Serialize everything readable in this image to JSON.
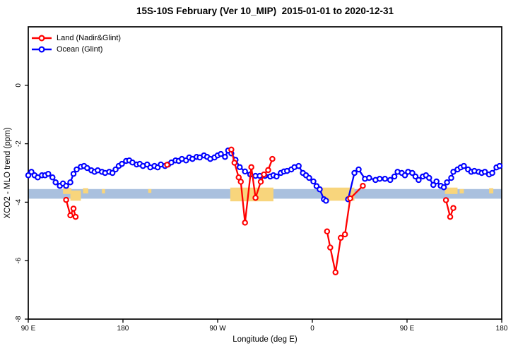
{
  "title": "15S-10S February (Ver 10_MIP)  2015-01-01 to 2020-12-31",
  "axes": {
    "ylabel": "XCO2 - MLO trend (ppm)",
    "xlabel": "Longitude (deg E)"
  },
  "legend": [
    {
      "label": "Land (Nadir&Glint)",
      "color": "#ff0000"
    },
    {
      "label": "Ocean (Glint)",
      "color": "#0000ff"
    }
  ],
  "chart_data": {
    "type": "line",
    "title": "15S-10S February (Ver 10_MIP)  2015-01-01 to 2020-12-31",
    "xlabel": "Longitude (deg E)",
    "ylabel": "XCO2 - MLO trend (ppm)",
    "legend_position": "top-left",
    "grid": false,
    "x_axis": {
      "range": [
        0,
        450
      ],
      "note": "axis position in degrees along wrapped longitude axis",
      "ticks": [
        {
          "pos": 0,
          "label": "90 E"
        },
        {
          "pos": 90,
          "label": "180"
        },
        {
          "pos": 180,
          "label": "90 W"
        },
        {
          "pos": 270,
          "label": "0"
        },
        {
          "pos": 360,
          "label": "90 E"
        },
        {
          "pos": 450,
          "label": "180"
        }
      ]
    },
    "y_axis": {
      "range": [
        -8,
        2
      ],
      "ticks": [
        {
          "value": 0,
          "label": "0"
        },
        {
          "value": -2,
          "label": "-2"
        },
        {
          "value": -4,
          "label": "-4"
        },
        {
          "value": -6,
          "label": "-6"
        },
        {
          "value": -8,
          "label": "-8"
        }
      ]
    },
    "band": {
      "top": -3.55,
      "bottom": -3.88,
      "color": "#a9c0de"
    },
    "highlight_color": "#f8d57c",
    "highlight_patches": [
      [
        33,
        41,
        -3.52,
        -3.72
      ],
      [
        40,
        50,
        -3.6,
        -3.95
      ],
      [
        52,
        57,
        -3.52,
        -3.7
      ],
      [
        70,
        73,
        -3.55,
        -3.7
      ],
      [
        114,
        117,
        -3.55,
        -3.68
      ],
      [
        192,
        233,
        -3.5,
        -3.97
      ],
      [
        279,
        310,
        -3.5,
        -3.95
      ],
      [
        396,
        408,
        -3.5,
        -3.72
      ],
      [
        410,
        414,
        -3.55,
        -3.7
      ],
      [
        438,
        442,
        -3.52,
        -3.7
      ]
    ],
    "series": [
      {
        "id": "ocean",
        "name": "Ocean (Glint)",
        "color": "#0000ff",
        "segments": [
          [
            [
              0,
              -3.08
            ],
            [
              3,
              -2.96
            ],
            [
              6,
              -3.08
            ],
            [
              9,
              -3.15
            ],
            [
              13,
              -3.08
            ],
            [
              16,
              -3.08
            ],
            [
              19,
              -3.03
            ],
            [
              23,
              -3.15
            ],
            [
              26,
              -3.32
            ],
            [
              30,
              -3.44
            ],
            [
              33,
              -3.36
            ],
            [
              36,
              -3.44
            ],
            [
              40,
              -3.32
            ],
            [
              43,
              -3.03
            ],
            [
              46,
              -2.88
            ],
            [
              50,
              -2.79
            ],
            [
              53,
              -2.76
            ],
            [
              56,
              -2.83
            ],
            [
              60,
              -2.91
            ],
            [
              63,
              -2.96
            ],
            [
              66,
              -2.91
            ],
            [
              70,
              -2.96
            ],
            [
              73,
              -3.0
            ],
            [
              77,
              -2.96
            ],
            [
              80,
              -3.0
            ],
            [
              83,
              -2.88
            ],
            [
              86,
              -2.76
            ],
            [
              89,
              -2.69
            ],
            [
              93,
              -2.59
            ],
            [
              96,
              -2.57
            ],
            [
              99,
              -2.64
            ],
            [
              103,
              -2.71
            ],
            [
              106,
              -2.69
            ],
            [
              109,
              -2.76
            ],
            [
              113,
              -2.71
            ],
            [
              116,
              -2.81
            ],
            [
              120,
              -2.76
            ],
            [
              123,
              -2.81
            ],
            [
              126,
              -2.71
            ],
            [
              130,
              -2.76
            ],
            [
              133,
              -2.71
            ],
            [
              136,
              -2.64
            ],
            [
              140,
              -2.57
            ],
            [
              143,
              -2.59
            ],
            [
              146,
              -2.52
            ],
            [
              150,
              -2.57
            ],
            [
              153,
              -2.47
            ],
            [
              156,
              -2.52
            ],
            [
              160,
              -2.45
            ],
            [
              163,
              -2.47
            ],
            [
              167,
              -2.4
            ],
            [
              170,
              -2.45
            ],
            [
              173,
              -2.52
            ],
            [
              177,
              -2.47
            ],
            [
              180,
              -2.4
            ],
            [
              183,
              -2.35
            ],
            [
              187,
              -2.45
            ],
            [
              190,
              -2.23
            ],
            [
              193,
              -2.33
            ],
            [
              197,
              -2.55
            ],
            [
              201,
              -2.8
            ],
            [
              206,
              -2.95
            ],
            [
              211,
              -3.05
            ],
            [
              216,
              -3.1
            ],
            [
              220,
              -3.1
            ],
            [
              225,
              -3.1
            ],
            [
              230,
              -3.12
            ],
            [
              233,
              -3.08
            ],
            [
              236,
              -3.12
            ],
            [
              240,
              -3.0
            ],
            [
              243,
              -2.95
            ],
            [
              246,
              -2.93
            ],
            [
              250,
              -2.88
            ],
            [
              253,
              -2.8
            ],
            [
              257,
              -2.76
            ],
            [
              261,
              -3.0
            ],
            [
              264,
              -3.08
            ],
            [
              267,
              -3.17
            ],
            [
              271,
              -3.29
            ],
            [
              274,
              -3.45
            ],
            [
              277,
              -3.56
            ],
            [
              281,
              -3.9
            ],
            [
              283,
              -3.95
            ]
          ],
          [
            [
              304,
              -3.9
            ],
            [
              310,
              -3.0
            ],
            [
              314,
              -2.88
            ],
            [
              320,
              -3.2
            ],
            [
              324,
              -3.17
            ],
            [
              330,
              -3.24
            ],
            [
              334,
              -3.2
            ],
            [
              339,
              -3.2
            ],
            [
              344,
              -3.24
            ],
            [
              348,
              -3.12
            ],
            [
              351,
              -2.96
            ],
            [
              355,
              -3.0
            ],
            [
              358,
              -3.08
            ],
            [
              361,
              -2.96
            ],
            [
              365,
              -3.0
            ],
            [
              368,
              -3.12
            ],
            [
              371,
              -3.24
            ],
            [
              375,
              -3.12
            ],
            [
              378,
              -3.08
            ],
            [
              381,
              -3.17
            ],
            [
              385,
              -3.41
            ],
            [
              388,
              -3.29
            ],
            [
              392,
              -3.44
            ],
            [
              395,
              -3.49
            ],
            [
              398,
              -3.32
            ],
            [
              402,
              -3.17
            ],
            [
              404,
              -2.96
            ],
            [
              408,
              -2.88
            ],
            [
              411,
              -2.81
            ],
            [
              414,
              -2.76
            ],
            [
              418,
              -2.88
            ],
            [
              421,
              -2.96
            ],
            [
              424,
              -2.93
            ],
            [
              428,
              -2.96
            ],
            [
              431,
              -3.0
            ],
            [
              434,
              -2.96
            ],
            [
              438,
              -3.05
            ],
            [
              441,
              -3.0
            ],
            [
              445,
              -2.81
            ],
            [
              448,
              -2.76
            ]
          ]
        ]
      },
      {
        "id": "land",
        "name": "Land (Nadir&Glint)",
        "color": "#ff0000",
        "segments": [
          [
            [
              36,
              -3.92
            ],
            [
              40,
              -4.45
            ],
            [
              43,
              -4.22
            ],
            [
              45,
              -4.5
            ]
          ],
          [
            [
              132,
              -2.72
            ]
          ],
          [
            [
              193,
              -2.2
            ],
            [
              196,
              -2.65
            ],
            [
              200,
              -3.15
            ],
            [
              202,
              -3.3
            ],
            [
              206,
              -4.7
            ],
            [
              212,
              -2.8
            ],
            [
              216,
              -3.85
            ],
            [
              221,
              -3.3
            ],
            [
              224,
              -3.05
            ],
            [
              228,
              -2.9
            ],
            [
              232,
              -2.52
            ]
          ],
          [
            [
              284,
              -5.0
            ],
            [
              287,
              -5.55
            ],
            [
              292,
              -6.4
            ],
            [
              297,
              -5.22
            ],
            [
              301,
              -5.1
            ],
            [
              306,
              -3.87
            ],
            [
              318,
              -3.44
            ]
          ],
          [
            [
              397,
              -3.93
            ],
            [
              401,
              -4.5
            ],
            [
              404,
              -4.2
            ]
          ]
        ]
      }
    ]
  }
}
